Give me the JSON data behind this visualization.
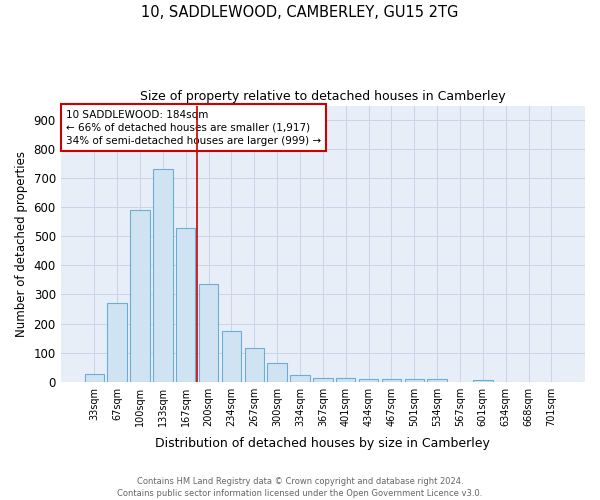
{
  "title1": "10, SADDLEWOOD, CAMBERLEY, GU15 2TG",
  "title2": "Size of property relative to detached houses in Camberley",
  "xlabel": "Distribution of detached houses by size in Camberley",
  "ylabel": "Number of detached properties",
  "categories": [
    "33sqm",
    "67sqm",
    "100sqm",
    "133sqm",
    "167sqm",
    "200sqm",
    "234sqm",
    "267sqm",
    "300sqm",
    "334sqm",
    "367sqm",
    "401sqm",
    "434sqm",
    "467sqm",
    "501sqm",
    "534sqm",
    "567sqm",
    "601sqm",
    "634sqm",
    "668sqm",
    "701sqm"
  ],
  "values": [
    25,
    270,
    590,
    730,
    530,
    335,
    175,
    115,
    65,
    22,
    13,
    12,
    10,
    8,
    8,
    8,
    0,
    7,
    0,
    0,
    0
  ],
  "bar_color": "#cfe3f3",
  "bar_edge_color": "#6aaed6",
  "grid_color": "#c8d4e8",
  "background_color": "#e8eef8",
  "red_line_x": 4.5,
  "annotation_text_line1": "10 SADDLEWOOD: 184sqm",
  "annotation_text_line2": "← 66% of detached houses are smaller (1,917)",
  "annotation_text_line3": "34% of semi-detached houses are larger (999) →",
  "annotation_box_color": "#cc0000",
  "footer1": "Contains HM Land Registry data © Crown copyright and database right 2024.",
  "footer2": "Contains public sector information licensed under the Open Government Licence v3.0.",
  "ylim": [
    0,
    950
  ],
  "yticks": [
    0,
    100,
    200,
    300,
    400,
    500,
    600,
    700,
    800,
    900
  ]
}
